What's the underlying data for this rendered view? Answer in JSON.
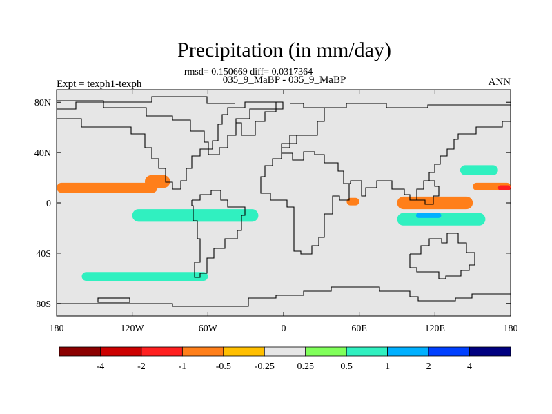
{
  "chart_data": {
    "type": "heatmap",
    "title": "Precipitation (in mm/day)",
    "stats_line": "rmsd= 0.150669 diff= 0.0317364",
    "cases_line": "035_9_MaBP - 035_9_MaBP",
    "left_label": "Expt = texph1-texph",
    "right_label": "ANN",
    "x_ticks": [
      "180",
      "120W",
      "60W",
      "0",
      "60E",
      "120E",
      "180"
    ],
    "y_ticks": [
      "80N",
      "40N",
      "0",
      "40S",
      "80S"
    ],
    "xlim": [
      -180,
      180
    ],
    "ylim": [
      -90,
      90
    ],
    "colorbar": {
      "labels": [
        "-4",
        "-2",
        "-1",
        "-0.5",
        "-0.25",
        "0.25",
        "0.5",
        "1",
        "2",
        "4"
      ],
      "colors": [
        "#8b0000",
        "#cc0000",
        "#ff2020",
        "#ff7f1a",
        "#ffbf00",
        "#e6e6e6",
        "#80ff5a",
        "#30f0c0",
        "#00b0ff",
        "#0040ff",
        "#000080"
      ]
    },
    "anomaly_regions": [
      {
        "level": "-1",
        "lon": [
          -180,
          -160
        ],
        "lat": [
          10,
          14
        ]
      },
      {
        "level": "-0.5",
        "lon": [
          -180,
          -100
        ],
        "lat": [
          8,
          16
        ]
      },
      {
        "level": "-0.5",
        "lon": [
          -110,
          -90
        ],
        "lat": [
          12,
          22
        ]
      },
      {
        "level": "-0.5",
        "lon": [
          50,
          60
        ],
        "lat": [
          -2,
          4
        ]
      },
      {
        "level": "-0.5",
        "lon": [
          90,
          150
        ],
        "lat": [
          -5,
          5
        ]
      },
      {
        "level": "-0.5",
        "lon": [
          150,
          180
        ],
        "lat": [
          10,
          16
        ]
      },
      {
        "level": "-1",
        "lon": [
          170,
          180
        ],
        "lat": [
          10,
          14
        ]
      },
      {
        "level": "0.5",
        "lon": [
          -120,
          -20
        ],
        "lat": [
          -15,
          -5
        ]
      },
      {
        "level": "0.5",
        "lon": [
          90,
          160
        ],
        "lat": [
          -18,
          -8
        ]
      },
      {
        "level": "1",
        "lon": [
          105,
          125
        ],
        "lat": [
          -12,
          -8
        ]
      },
      {
        "level": "0.5",
        "lon": [
          -160,
          -60
        ],
        "lat": [
          -62,
          -55
        ]
      },
      {
        "level": "0.5",
        "lon": [
          140,
          170
        ],
        "lat": [
          22,
          30
        ]
      }
    ]
  }
}
